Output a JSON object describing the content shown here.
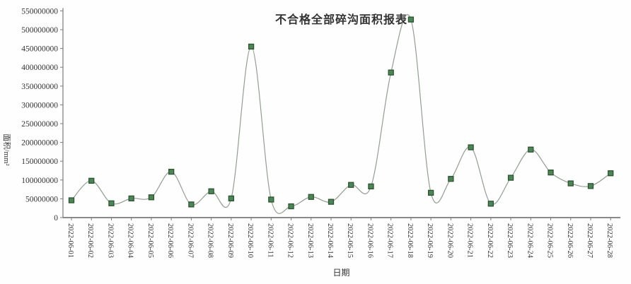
{
  "chart_data": {
    "type": "line",
    "title": "不合格全部碎沟面积报表",
    "xlabel": "日期",
    "ylabel": "面积/mm²",
    "categories": [
      "2022-06-01",
      "2022-06-02",
      "2022-06-03",
      "2022-06-04",
      "2022-06-05",
      "2022-06-06",
      "2022-06-07",
      "2022-06-08",
      "2022-06-09",
      "2022-06-10",
      "2022-06-11",
      "2022-06-12",
      "2022-06-13",
      "2022-06-14",
      "2022-06-15",
      "2022-06-16",
      "2022-06-17",
      "2022-06-18",
      "2022-06-19",
      "2022-06-20",
      "2022-06-21",
      "2022-06-22",
      "2022-06-23",
      "2022-06-24",
      "2022-06-25",
      "2022-06-26",
      "2022-06-27",
      "2022-06-28"
    ],
    "values": [
      46000000,
      98000000,
      38000000,
      51000000,
      54000000,
      122000000,
      35000000,
      70000000,
      51000000,
      455000000,
      48000000,
      30000000,
      55000000,
      42000000,
      87000000,
      83000000,
      386000000,
      527000000,
      66000000,
      103000000,
      187000000,
      37000000,
      106000000,
      181000000,
      120000000,
      91000000,
      84000000,
      118000000
    ],
    "ylim": [
      0,
      550000000
    ],
    "ytick_labels": [
      "0",
      "50000000",
      "100000000",
      "150000000",
      "200000000",
      "250000000",
      "300000000",
      "350000000",
      "400000000",
      "450000000",
      "500000000",
      "550000000"
    ],
    "grid": false,
    "legend_position": "none",
    "colors": {
      "line": "#919e91",
      "marker_fill": "#4e8457",
      "marker_border": "#2b5430",
      "axis": "#7a7a7a",
      "text": "#333333"
    }
  }
}
